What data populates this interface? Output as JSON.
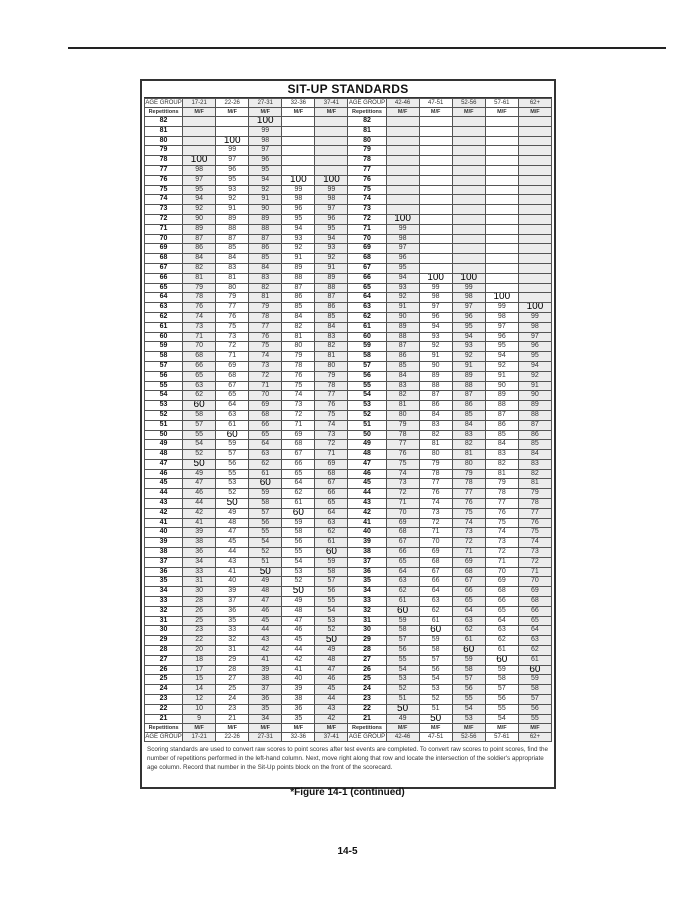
{
  "table": {
    "title": "SIT-UP STANDARDS",
    "age_group_label": "AGE GROUP",
    "repetitions_label": "Repetitions",
    "sex_label": "M/F",
    "age_groups_left": [
      "17-21",
      "22-26",
      "27-31",
      "32-36",
      "37-41"
    ],
    "age_groups_right": [
      "42-46",
      "47-51",
      "52-56",
      "57-61",
      "62+"
    ],
    "rows": [
      [
        "82",
        "",
        "",
        "100",
        "",
        "",
        "",
        "",
        "",
        "",
        ""
      ],
      [
        "81",
        "",
        "",
        "99",
        "",
        "",
        "",
        "",
        "",
        "",
        ""
      ],
      [
        "80",
        "",
        "100",
        "98",
        "",
        "",
        "",
        "",
        "",
        "",
        ""
      ],
      [
        "79",
        "",
        "99",
        "97",
        "",
        "",
        "",
        "",
        "",
        "",
        ""
      ],
      [
        "78",
        "100",
        "97",
        "96",
        "",
        "",
        "",
        "",
        "",
        "",
        ""
      ],
      [
        "77",
        "98",
        "96",
        "95",
        "",
        "",
        "",
        "",
        "",
        "",
        ""
      ],
      [
        "76",
        "97",
        "95",
        "94",
        "100",
        "100",
        "",
        "",
        "",
        "",
        ""
      ],
      [
        "75",
        "95",
        "93",
        "92",
        "99",
        "99",
        "",
        "",
        "",
        "",
        ""
      ],
      [
        "74",
        "94",
        "92",
        "91",
        "98",
        "98",
        "",
        "",
        "",
        "",
        ""
      ],
      [
        "73",
        "92",
        "91",
        "90",
        "96",
        "97",
        "",
        "",
        "",
        "",
        ""
      ],
      [
        "72",
        "90",
        "89",
        "89",
        "95",
        "96",
        "100",
        "",
        "",
        "",
        ""
      ],
      [
        "71",
        "89",
        "88",
        "88",
        "94",
        "95",
        "99",
        "",
        "",
        "",
        ""
      ],
      [
        "70",
        "87",
        "87",
        "87",
        "93",
        "94",
        "98",
        "",
        "",
        "",
        ""
      ],
      [
        "69",
        "86",
        "85",
        "86",
        "92",
        "93",
        "97",
        "",
        "",
        "",
        ""
      ],
      [
        "68",
        "84",
        "84",
        "85",
        "91",
        "92",
        "96",
        "",
        "",
        "",
        ""
      ],
      [
        "67",
        "82",
        "83",
        "84",
        "89",
        "91",
        "95",
        "",
        "",
        "",
        ""
      ],
      [
        "66",
        "81",
        "81",
        "83",
        "88",
        "89",
        "94",
        "100",
        "100",
        "",
        ""
      ],
      [
        "65",
        "79",
        "80",
        "82",
        "87",
        "88",
        "93",
        "99",
        "99",
        "",
        ""
      ],
      [
        "64",
        "78",
        "79",
        "81",
        "86",
        "87",
        "92",
        "98",
        "98",
        "100",
        ""
      ],
      [
        "63",
        "76",
        "77",
        "79",
        "85",
        "86",
        "91",
        "97",
        "97",
        "99",
        "100"
      ],
      [
        "62",
        "74",
        "76",
        "78",
        "84",
        "85",
        "90",
        "96",
        "96",
        "98",
        "99"
      ],
      [
        "61",
        "73",
        "75",
        "77",
        "82",
        "84",
        "89",
        "94",
        "95",
        "97",
        "98"
      ],
      [
        "60",
        "71",
        "73",
        "76",
        "81",
        "83",
        "88",
        "93",
        "94",
        "96",
        "97"
      ],
      [
        "59",
        "70",
        "72",
        "75",
        "80",
        "82",
        "87",
        "92",
        "93",
        "95",
        "96"
      ],
      [
        "58",
        "68",
        "71",
        "74",
        "79",
        "81",
        "86",
        "91",
        "92",
        "94",
        "95"
      ],
      [
        "57",
        "66",
        "69",
        "73",
        "78",
        "80",
        "85",
        "90",
        "91",
        "92",
        "94"
      ],
      [
        "56",
        "65",
        "68",
        "72",
        "76",
        "79",
        "84",
        "89",
        "89",
        "91",
        "92"
      ],
      [
        "55",
        "63",
        "67",
        "71",
        "75",
        "78",
        "83",
        "88",
        "88",
        "90",
        "91"
      ],
      [
        "54",
        "62",
        "65",
        "70",
        "74",
        "77",
        "82",
        "87",
        "87",
        "89",
        "90"
      ],
      [
        "53",
        "60",
        "64",
        "69",
        "73",
        "76",
        "81",
        "86",
        "86",
        "88",
        "89"
      ],
      [
        "52",
        "58",
        "63",
        "68",
        "72",
        "75",
        "80",
        "84",
        "85",
        "87",
        "88"
      ],
      [
        "51",
        "57",
        "61",
        "66",
        "71",
        "74",
        "79",
        "83",
        "84",
        "86",
        "87"
      ],
      [
        "50",
        "55",
        "60",
        "65",
        "69",
        "73",
        "78",
        "82",
        "83",
        "85",
        "86"
      ],
      [
        "49",
        "54",
        "59",
        "64",
        "68",
        "72",
        "77",
        "81",
        "82",
        "84",
        "85"
      ],
      [
        "48",
        "52",
        "57",
        "63",
        "67",
        "71",
        "76",
        "80",
        "81",
        "83",
        "84"
      ],
      [
        "47",
        "50",
        "56",
        "62",
        "66",
        "69",
        "75",
        "79",
        "80",
        "82",
        "83"
      ],
      [
        "46",
        "49",
        "55",
        "61",
        "65",
        "68",
        "74",
        "78",
        "79",
        "81",
        "82"
      ],
      [
        "45",
        "47",
        "53",
        "60",
        "64",
        "67",
        "73",
        "77",
        "78",
        "79",
        "81"
      ],
      [
        "44",
        "46",
        "52",
        "59",
        "62",
        "66",
        "72",
        "76",
        "77",
        "78",
        "79"
      ],
      [
        "43",
        "44",
        "50",
        "58",
        "61",
        "65",
        "71",
        "74",
        "76",
        "77",
        "78"
      ],
      [
        "42",
        "42",
        "49",
        "57",
        "60",
        "64",
        "70",
        "73",
        "75",
        "76",
        "77"
      ],
      [
        "41",
        "41",
        "48",
        "56",
        "59",
        "63",
        "69",
        "72",
        "74",
        "75",
        "76"
      ],
      [
        "40",
        "39",
        "47",
        "55",
        "58",
        "62",
        "68",
        "71",
        "73",
        "74",
        "75"
      ],
      [
        "39",
        "38",
        "45",
        "54",
        "56",
        "61",
        "67",
        "70",
        "72",
        "73",
        "74"
      ],
      [
        "38",
        "36",
        "44",
        "52",
        "55",
        "60",
        "66",
        "69",
        "71",
        "72",
        "73"
      ],
      [
        "37",
        "34",
        "43",
        "51",
        "54",
        "59",
        "65",
        "68",
        "69",
        "71",
        "72"
      ],
      [
        "36",
        "33",
        "41",
        "50",
        "53",
        "58",
        "64",
        "67",
        "68",
        "70",
        "71"
      ],
      [
        "35",
        "31",
        "40",
        "49",
        "52",
        "57",
        "63",
        "66",
        "67",
        "69",
        "70"
      ],
      [
        "34",
        "30",
        "39",
        "48",
        "50",
        "56",
        "62",
        "64",
        "66",
        "68",
        "69"
      ],
      [
        "33",
        "28",
        "37",
        "47",
        "49",
        "55",
        "61",
        "63",
        "65",
        "66",
        "68"
      ],
      [
        "32",
        "26",
        "36",
        "46",
        "48",
        "54",
        "60",
        "62",
        "64",
        "65",
        "66"
      ],
      [
        "31",
        "25",
        "35",
        "45",
        "47",
        "53",
        "59",
        "61",
        "63",
        "64",
        "65"
      ],
      [
        "30",
        "23",
        "33",
        "44",
        "46",
        "52",
        "58",
        "60",
        "62",
        "63",
        "64"
      ],
      [
        "29",
        "22",
        "32",
        "43",
        "45",
        "50",
        "57",
        "59",
        "61",
        "62",
        "63"
      ],
      [
        "28",
        "20",
        "31",
        "42",
        "44",
        "49",
        "56",
        "58",
        "60",
        "61",
        "62"
      ],
      [
        "27",
        "18",
        "29",
        "41",
        "42",
        "48",
        "55",
        "57",
        "59",
        "60",
        "61"
      ],
      [
        "26",
        "17",
        "28",
        "39",
        "41",
        "47",
        "54",
        "56",
        "58",
        "59",
        "60"
      ],
      [
        "25",
        "15",
        "27",
        "38",
        "40",
        "46",
        "53",
        "54",
        "57",
        "58",
        "59"
      ],
      [
        "24",
        "14",
        "25",
        "37",
        "39",
        "45",
        "52",
        "53",
        "56",
        "57",
        "58"
      ],
      [
        "23",
        "12",
        "24",
        "36",
        "38",
        "44",
        "51",
        "52",
        "55",
        "56",
        "57"
      ],
      [
        "22",
        "10",
        "23",
        "35",
        "36",
        "43",
        "50",
        "51",
        "54",
        "55",
        "56"
      ],
      [
        "21",
        "9",
        "21",
        "34",
        "35",
        "42",
        "49",
        "50",
        "53",
        "54",
        "55"
      ]
    ],
    "note": "Scoring standards are used to convert raw scores to point scores after test events are completed.  To convert raw scores to point scores, find the number of repetitions performed in the left-hand column.  Next, move right along that row and locate the intersection of the soldier's appropriate age column.  Record that number in the Sit-Up points block on the front of the scorecard."
  },
  "caption": "*Figure 14-1 (continued)",
  "page_number": "14-5"
}
